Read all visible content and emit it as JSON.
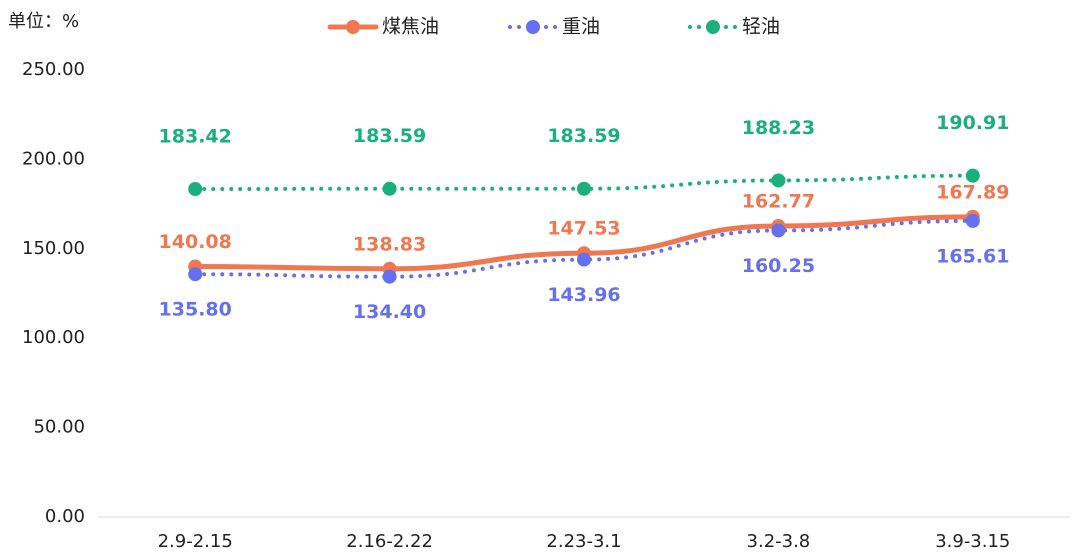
{
  "chart_data": {
    "type": "line",
    "unit_label": "单位：%",
    "categories": [
      "2.9-2.15",
      "2.16-2.22",
      "2.23-3.1",
      "3.2-3.8",
      "3.9-3.15"
    ],
    "series": [
      {
        "name": "煤焦油",
        "color": "#f07850",
        "line_style": "solid",
        "values": [
          140.08,
          138.83,
          147.53,
          162.77,
          167.89
        ]
      },
      {
        "name": "重油",
        "color": "#6470ee",
        "line_style": "dotted",
        "values": [
          135.8,
          134.4,
          143.96,
          160.25,
          165.61
        ],
        "value_labels": [
          "135.80",
          "134.40",
          "143.96",
          "160.25",
          "165.61"
        ]
      },
      {
        "name": "轻油",
        "color": "#19b07c",
        "line_style": "dotted",
        "values": [
          183.42,
          183.59,
          183.59,
          188.23,
          190.91
        ]
      }
    ],
    "ylim": [
      0,
      250
    ],
    "yticks": [
      {
        "value": 0,
        "label": "0.00"
      },
      {
        "value": 50,
        "label": "50.00"
      },
      {
        "value": 100,
        "label": "100.00"
      },
      {
        "value": 150,
        "label": "150.00"
      },
      {
        "value": 200,
        "label": "200.00"
      },
      {
        "value": 250,
        "label": "250.00"
      }
    ],
    "grid": false
  }
}
